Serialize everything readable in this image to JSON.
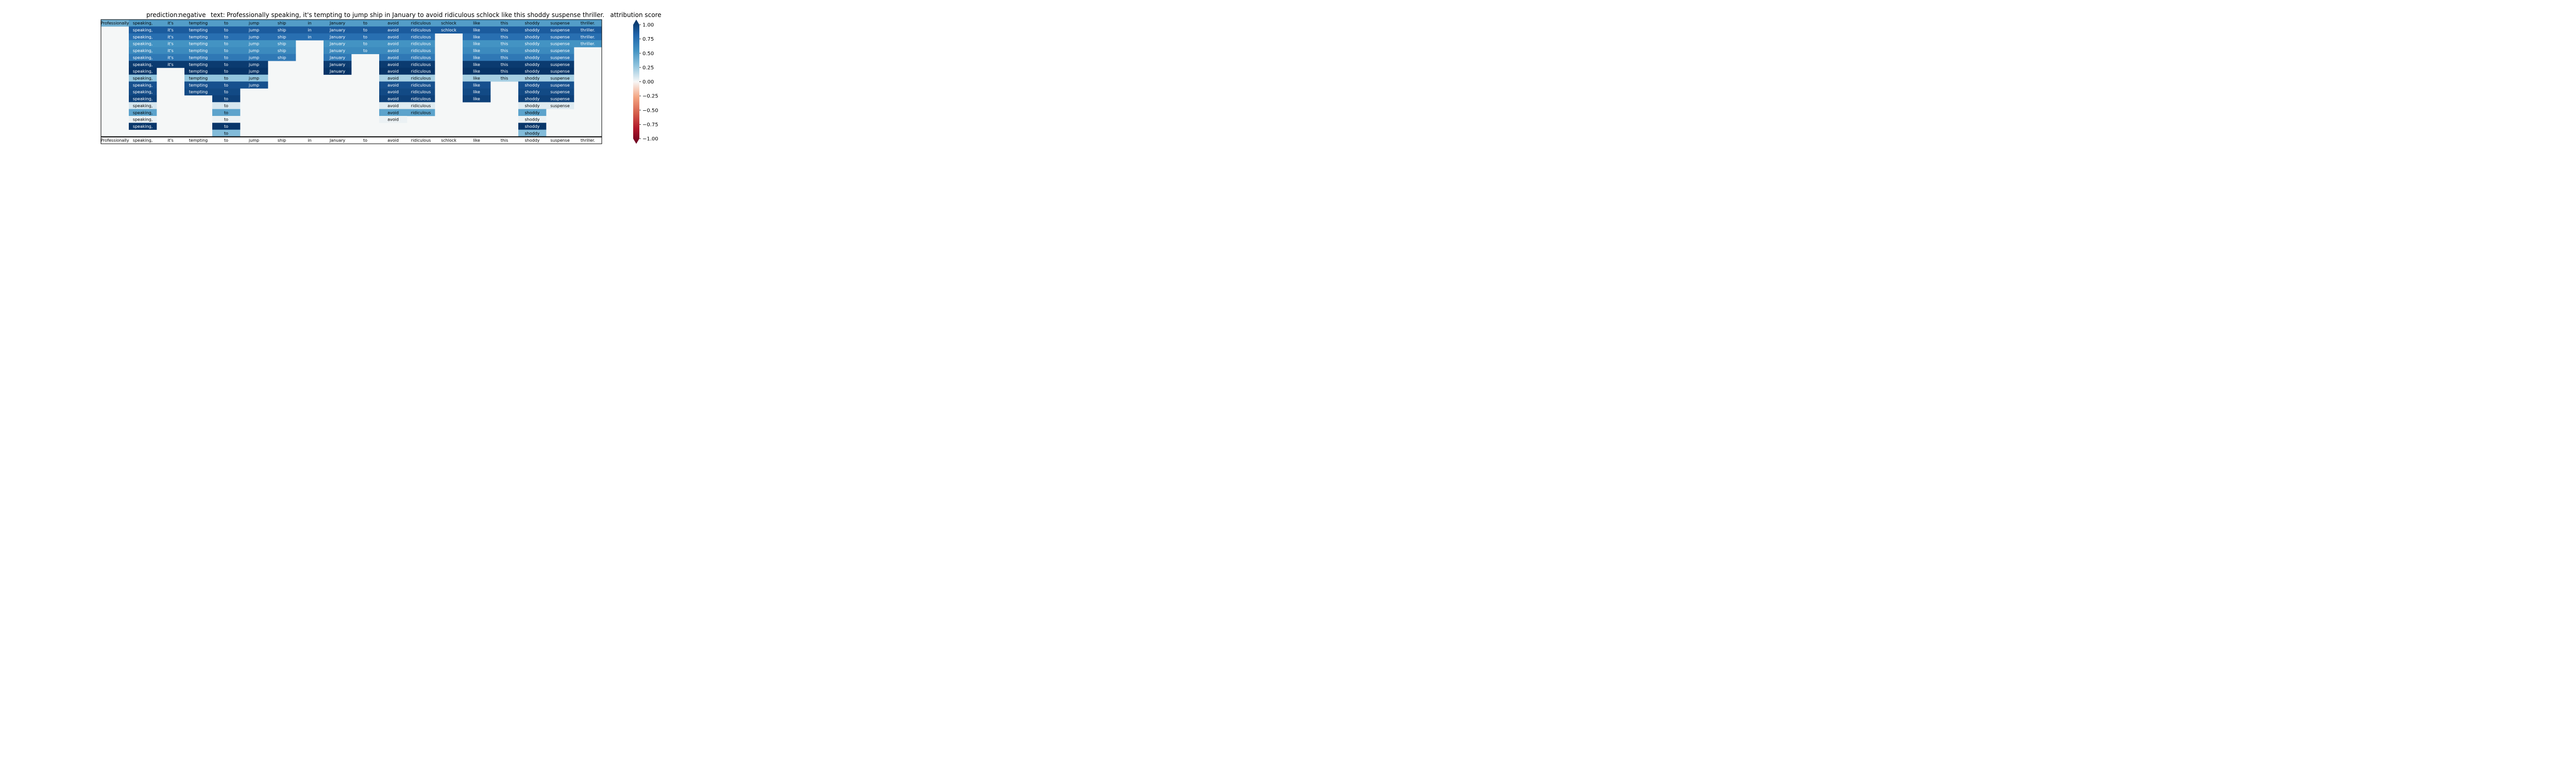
{
  "chart_data": {
    "type": "heatmap",
    "title_prediction_label": "prediction:",
    "title_prediction_value": "negative",
    "title_text_label": "text:",
    "title_text_value": "Professionally speaking, it's tempting to jump ship in January to avoid ridiculous schlock like this shoddy suspense thriller.",
    "tokens": [
      "Professionally",
      "speaking,",
      "it's",
      "tempting",
      "to",
      "jump",
      "ship",
      "in",
      "January",
      "to",
      "avoid",
      "ridiculous",
      "schlock",
      "like",
      "this",
      "shoddy",
      "suspense",
      "thriller."
    ],
    "rows": [
      [
        0.35,
        0.45,
        0.45,
        0.45,
        0.45,
        0.45,
        0.45,
        0.45,
        0.45,
        0.45,
        0.45,
        0.45,
        0.45,
        0.45,
        0.45,
        0.45,
        0.45,
        0.45
      ],
      [
        null,
        0.8,
        0.8,
        0.8,
        0.8,
        0.8,
        0.8,
        0.8,
        0.8,
        0.8,
        0.8,
        0.8,
        0.8,
        0.8,
        0.8,
        0.8,
        0.8,
        0.8
      ],
      [
        null,
        0.7,
        0.7,
        0.7,
        0.7,
        0.7,
        0.7,
        0.7,
        0.7,
        0.7,
        0.7,
        0.7,
        null,
        0.7,
        0.7,
        0.7,
        0.7,
        0.7
      ],
      [
        null,
        0.5,
        0.5,
        0.5,
        0.5,
        0.5,
        0.5,
        null,
        0.5,
        0.5,
        0.5,
        0.5,
        null,
        0.5,
        0.5,
        0.5,
        0.5,
        0.5
      ],
      [
        null,
        0.55,
        0.55,
        0.55,
        0.55,
        0.55,
        0.55,
        null,
        0.55,
        0.55,
        0.55,
        0.55,
        null,
        0.55,
        0.55,
        0.55,
        0.55,
        null
      ],
      [
        null,
        0.65,
        0.65,
        0.65,
        0.65,
        0.65,
        0.65,
        null,
        0.65,
        null,
        0.65,
        0.65,
        null,
        0.65,
        0.65,
        0.65,
        0.65,
        null
      ],
      [
        null,
        0.95,
        0.95,
        0.95,
        0.95,
        0.95,
        null,
        null,
        0.95,
        null,
        0.95,
        0.95,
        null,
        0.95,
        0.95,
        0.95,
        0.95,
        null
      ],
      [
        null,
        0.98,
        null,
        0.98,
        0.98,
        0.98,
        null,
        null,
        0.98,
        null,
        0.98,
        0.98,
        null,
        0.98,
        0.98,
        0.98,
        0.98,
        null
      ],
      [
        null,
        0.25,
        null,
        0.25,
        0.25,
        0.25,
        null,
        null,
        null,
        null,
        0.2,
        0.2,
        null,
        0.2,
        0.2,
        0.2,
        0.2,
        null
      ],
      [
        null,
        0.85,
        null,
        0.85,
        0.85,
        0.85,
        null,
        null,
        null,
        null,
        0.85,
        0.85,
        null,
        0.85,
        null,
        0.85,
        0.85,
        null
      ],
      [
        null,
        0.88,
        null,
        0.88,
        0.88,
        null,
        null,
        null,
        null,
        null,
        0.88,
        0.88,
        null,
        0.88,
        null,
        0.88,
        0.88,
        null
      ],
      [
        null,
        0.92,
        null,
        null,
        0.92,
        null,
        null,
        null,
        null,
        null,
        0.92,
        0.92,
        null,
        0.92,
        null,
        0.92,
        0.92,
        null
      ],
      [
        null,
        0.08,
        null,
        null,
        0.08,
        null,
        null,
        null,
        null,
        null,
        0.06,
        0.06,
        null,
        null,
        null,
        0.06,
        0.06,
        null
      ],
      [
        null,
        0.42,
        null,
        null,
        0.42,
        null,
        null,
        null,
        null,
        null,
        0.42,
        0.42,
        null,
        null,
        null,
        0.42,
        null,
        null
      ],
      [
        null,
        0.03,
        null,
        null,
        0.03,
        null,
        null,
        null,
        null,
        null,
        0.03,
        null,
        null,
        null,
        null,
        0.03,
        null,
        null
      ],
      [
        null,
        0.97,
        null,
        null,
        0.97,
        null,
        null,
        null,
        null,
        null,
        null,
        null,
        null,
        null,
        null,
        0.97,
        null,
        null
      ],
      [
        null,
        null,
        null,
        null,
        0.3,
        null,
        null,
        null,
        null,
        null,
        null,
        null,
        null,
        null,
        null,
        0.3,
        null,
        null
      ]
    ],
    "colorbar_title": "attribution score",
    "colorbar_ticks": [
      "1.00",
      "0.75",
      "0.50",
      "0.25",
      "0.00",
      "−0.25",
      "−0.50",
      "−0.75",
      "−1.00"
    ],
    "colorbar_tick_values": [
      1.0,
      0.75,
      0.5,
      0.25,
      0.0,
      -0.25,
      -0.5,
      -0.75,
      -1.0
    ],
    "colorbar_range": [
      -1.0,
      1.0
    ]
  }
}
